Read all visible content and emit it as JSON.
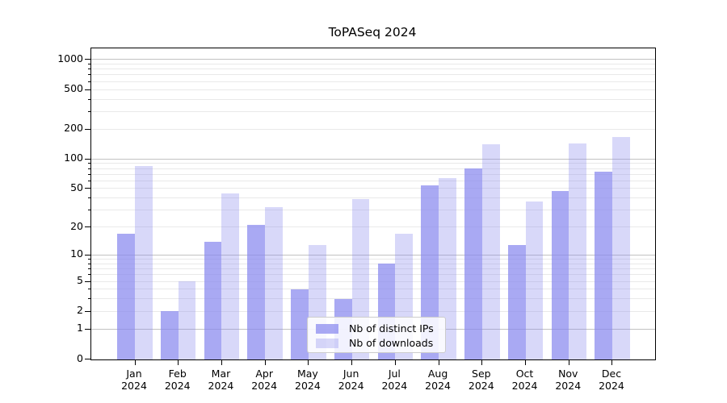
{
  "chart_data": {
    "type": "bar",
    "title": "ToPASeq 2024",
    "categories": [
      "Jan\n2024",
      "Feb\n2024",
      "Mar\n2024",
      "Apr\n2024",
      "May\n2024",
      "Jun\n2024",
      "Jul\n2024",
      "Aug\n2024",
      "Sep\n2024",
      "Oct\n2024",
      "Nov\n2024",
      "Dec\n2024"
    ],
    "series": [
      {
        "name": "Nb of distinct IPs",
        "color": "rgba(136,136,238,0.72)",
        "values": [
          17,
          2,
          14,
          21,
          4,
          3,
          8,
          54,
          80,
          13,
          47,
          75
        ]
      },
      {
        "name": "Nb of downloads",
        "color": "rgba(136,136,238,0.33)",
        "values": [
          85,
          5,
          45,
          32,
          13,
          39,
          17,
          64,
          140,
          37,
          142,
          168
        ]
      }
    ],
    "xlabel": "",
    "ylabel": "",
    "yscale": "symlog (log(1+x), linear below 1)",
    "ylim": [
      0,
      1280
    ],
    "yticks": [
      0,
      1,
      2,
      5,
      10,
      20,
      50,
      100,
      200,
      500,
      1000
    ],
    "ytick_labels": [
      "0",
      "1",
      "2",
      "5",
      "10",
      "20",
      "50",
      "100",
      "200",
      "500",
      "1000"
    ],
    "grid": {
      "enabled": true,
      "major_values": [
        1,
        10,
        100,
        1000
      ],
      "minor_values": [
        2,
        3,
        4,
        5,
        6,
        7,
        8,
        9,
        20,
        30,
        40,
        50,
        60,
        70,
        80,
        90,
        200,
        300,
        400,
        500,
        600,
        700,
        800,
        900
      ]
    },
    "legend": {
      "position": "lower center inside plot",
      "entries": [
        "Nb of distinct IPs",
        "Nb of downloads"
      ]
    }
  },
  "colors": {
    "background": "#ffffff",
    "bar_hue": "#8888ee",
    "grid_major": "#c2c2c2",
    "grid_minor": "#e9e9e9",
    "spine": "#000000",
    "legend_border": "#cccccc"
  }
}
